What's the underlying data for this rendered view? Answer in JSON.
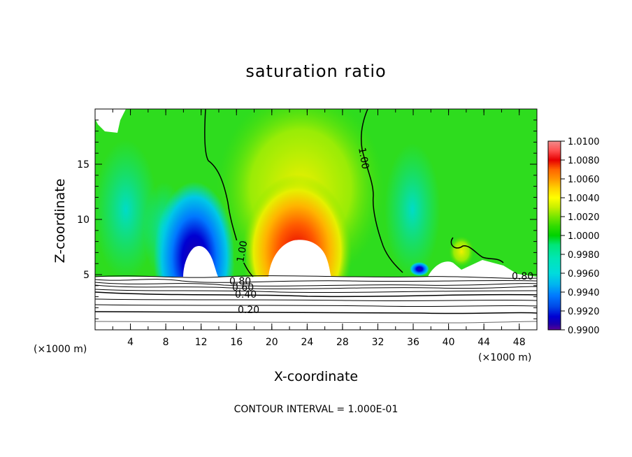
{
  "chart_data": {
    "type": "heatmap",
    "title": "saturation ratio",
    "xlabel": "X-coordinate",
    "ylabel": "Z-coordinate",
    "x_unit_label": "(×1000 m)",
    "footer": "CONTOUR INTERVAL = 1.000E-01",
    "xlim": [
      0,
      50
    ],
    "ylim": [
      0,
      20
    ],
    "x_ticks": [
      4,
      8,
      12,
      16,
      20,
      24,
      28,
      32,
      36,
      40,
      44,
      48
    ],
    "y_ticks": [
      5,
      10,
      15
    ],
    "colorbar": {
      "min": 0.99,
      "max": 1.01,
      "labels": [
        "1.0100",
        "1.0080",
        "1.0060",
        "1.0040",
        "1.0020",
        "1.0000",
        "0.9980",
        "0.9960",
        "0.9940",
        "0.9920",
        "0.9900"
      ],
      "colors": [
        "#f08c8c",
        "#ff5050",
        "#e60000",
        "#ff6400",
        "#ff9600",
        "#ffd200",
        "#ffff00",
        "#c8f000",
        "#78e600",
        "#32dc00",
        "#00d200",
        "#00e678",
        "#00e6b4",
        "#00dcdc",
        "#00b4f0",
        "#0078ff",
        "#0046e6",
        "#0000d2",
        "#1e00aa",
        "#5a0096"
      ]
    },
    "contour_labels": [
      "1.00",
      "1.00",
      "0.80",
      "0.60",
      "0.40",
      "0.20",
      "0.80"
    ],
    "contour_interval": 0.1
  }
}
